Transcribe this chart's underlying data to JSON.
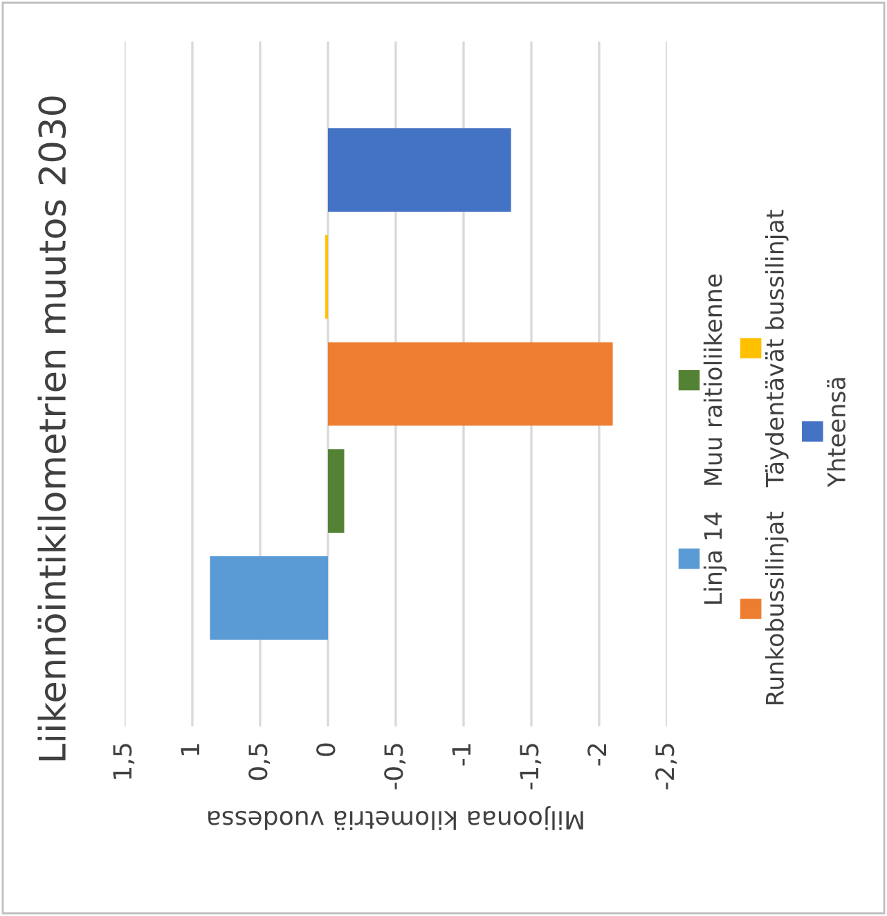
{
  "chart_data": {
    "type": "bar",
    "orientation": "horizontal",
    "title": "Liikennöintikilometrien muutos 2030",
    "xlabel": "Miljoonaa kilometriä vuodessa",
    "categories": [
      null
    ],
    "series": [
      {
        "name": "Linja 14",
        "color": "#5b9bd5",
        "values": [
          0.87
        ]
      },
      {
        "name": "Muu raitioliikenne",
        "color": "#548235",
        "values": [
          -0.12
        ]
      },
      {
        "name": "Runkobussilinjat",
        "color": "#ed7d31",
        "values": [
          -2.1
        ]
      },
      {
        "name": "Täydentävät bussilinjat",
        "color": "#ffc000",
        "values": [
          0.02
        ]
      },
      {
        "name": "Yhteensä",
        "color": "#4472c4",
        "values": [
          -1.35
        ]
      }
    ],
    "xlim": [
      1.5,
      -2.5
    ],
    "xticks": [
      {
        "value": 1.5,
        "label": "1,5"
      },
      1,
      {
        "value": 0.5,
        "label": "0,5"
      },
      0,
      {
        "value": -0.5,
        "label": "-0,5"
      },
      -1,
      {
        "value": -1.5,
        "label": "-1,5"
      },
      -2,
      {
        "value": -2.5,
        "label": "-2,5"
      }
    ],
    "grid": "x",
    "legend": "right"
  }
}
